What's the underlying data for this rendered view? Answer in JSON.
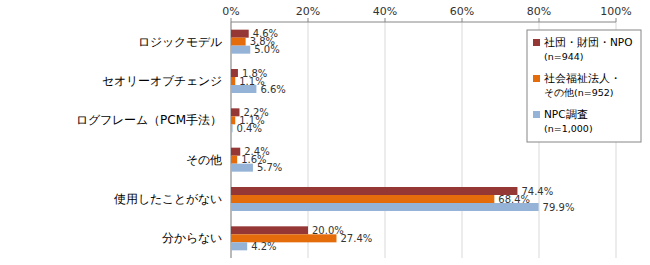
{
  "chart_data": {
    "type": "bar",
    "orientation": "horizontal",
    "categories": [
      "ロジックモデル",
      "セオリーオブチェンジ",
      "ログフレーム（PCM手法）",
      "その他",
      "使用したことがない",
      "分からない"
    ],
    "series": [
      {
        "name": "社団・財団・NPO\n(n=944)",
        "color": "#953735",
        "values": [
          4.6,
          1.8,
          2.2,
          2.4,
          74.4,
          20.0
        ],
        "value_labels": [
          "4.6%",
          "1.8%",
          "2.2%",
          "2.4%",
          "74.4%",
          "20.0%"
        ]
      },
      {
        "name": "社会福祉法人・\nその他(n=952)",
        "color": "#e46c0a",
        "values": [
          3.8,
          1.1,
          1.1,
          1.6,
          68.4,
          27.4
        ],
        "value_labels": [
          "3.8%",
          "1.1%",
          "1.1%",
          "1.6%",
          "68.4%",
          "27.4%"
        ]
      },
      {
        "name": "NPC調査\n(n=1,000)",
        "color": "#95b3d7",
        "values": [
          5.0,
          6.6,
          0.4,
          5.7,
          79.9,
          4.2
        ],
        "value_labels": [
          "5.0%",
          "6.6%",
          "0.4%",
          "5.7%",
          "79.9%",
          "4.2%"
        ]
      }
    ],
    "xlim": [
      0,
      100
    ],
    "xticks": [
      {
        "value": 0,
        "label": "0%"
      },
      {
        "value": 20,
        "label": "20%"
      },
      {
        "value": 40,
        "label": "40%"
      },
      {
        "value": 60,
        "label": "60%"
      },
      {
        "value": 80,
        "label": "80%"
      },
      {
        "value": 100,
        "label": "100%"
      }
    ],
    "grid": true,
    "legend": "top-right",
    "data_labels": true
  }
}
